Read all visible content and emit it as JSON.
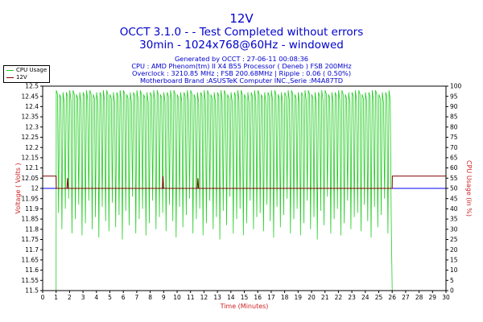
{
  "header": {
    "title": "12V",
    "subtitle1": "OCCT 3.1.0 -  - Test Completed without errors",
    "subtitle2": "30min - 1024x768@60Hz - windowed"
  },
  "info": {
    "generated": "Generated by OCCT : 27-06-11 00:08:36",
    "cpu": "CPU : AMD Phenom(tm) II X4 B55 Processor ( Deneb ) FSB 200MHz",
    "overclock": "Overclock : 3210.85 MHz ; FSB 200.68MHz | Ripple : 0.06 ( 0.50%)",
    "motherboard": "Motherboard Brand :ASUSTeK Computer INC.,Serie :M4A87TD"
  },
  "legend": {
    "cpu_usage": "CPU Usage",
    "v12": "12V"
  },
  "colors": {
    "cpu_usage": "#22cc22",
    "v12": "#800000",
    "reference": "#0000ff",
    "axis_label": "#cc2222",
    "title": "#0000cc"
  },
  "chart_data": {
    "type": "line",
    "title": "12V",
    "xlabel": "Time (Minutes)",
    "ylabel_left": "Voltage ( Volts )",
    "ylabel_right": "CPU Usage (in %)",
    "xlim": [
      0,
      30
    ],
    "ylim_left": [
      11.5,
      12.5
    ],
    "ylim_right": [
      0,
      100
    ],
    "grid": false,
    "legend_position": "top-left",
    "x_ticks": [
      "0",
      "1",
      "2",
      "3",
      "4",
      "5",
      "6",
      "7",
      "8",
      "9",
      "10",
      "11",
      "12",
      "13",
      "14",
      "15",
      "16",
      "17",
      "18",
      "19",
      "20",
      "21",
      "22",
      "23",
      "24",
      "25",
      "26",
      "27",
      "28",
      "29",
      "30"
    ],
    "y_ticks_left": [
      "11.5",
      "11.55",
      "11.6",
      "11.65",
      "11.7",
      "11.75",
      "11.8",
      "11.85",
      "11.9",
      "11.95",
      "12",
      "12.05",
      "12.1",
      "12.15",
      "12.2",
      "12.25",
      "12.3",
      "12.35",
      "12.4",
      "12.45",
      "12.5"
    ],
    "y_ticks_right": [
      "0",
      "5",
      "10",
      "15",
      "20",
      "25",
      "30",
      "35",
      "40",
      "45",
      "50",
      "55",
      "60",
      "65",
      "70",
      "75",
      "80",
      "85",
      "90",
      "95",
      "100"
    ],
    "reference_value": 12.0,
    "series": [
      {
        "name": "12V",
        "axis": "left",
        "x": [
          0,
          1.0,
          1.01,
          1.8,
          1.85,
          1.9,
          8.9,
          8.95,
          9.0,
          11.5,
          11.55,
          11.6,
          26.0,
          26.01,
          30
        ],
        "values": [
          12.06,
          12.06,
          12.0,
          12.0,
          12.05,
          12.0,
          12.0,
          12.06,
          12.0,
          12.0,
          12.05,
          12.0,
          12.0,
          12.06,
          12.06
        ]
      },
      {
        "name": "CPU Usage",
        "axis": "right",
        "x_start": 1.0,
        "x_end": 26.0,
        "cycle_minutes": 0.25,
        "high": 98,
        "low_values": [
          38,
          30,
          40,
          45,
          28,
          35,
          42,
          27,
          33,
          44,
          30,
          36,
          26,
          41,
          34,
          29,
          43,
          31,
          37,
          25,
          39,
          32,
          46,
          28,
          35,
          40,
          27,
          33,
          44,
          30,
          36,
          38,
          29,
          42,
          34,
          26,
          41,
          31,
          37,
          45,
          28,
          35,
          40,
          27,
          33,
          44,
          30,
          36,
          25,
          39,
          32,
          46,
          28,
          35,
          40,
          27,
          33,
          44,
          30,
          36,
          38,
          29,
          42,
          34,
          26,
          41,
          31,
          37,
          45,
          28,
          35,
          40,
          27,
          33,
          44,
          30,
          36,
          25,
          39,
          32,
          46,
          28,
          35,
          40,
          27,
          33,
          44,
          30,
          36,
          38,
          29,
          42,
          34,
          26,
          41,
          31,
          37,
          45,
          28,
          35,
          40
        ]
      }
    ]
  }
}
